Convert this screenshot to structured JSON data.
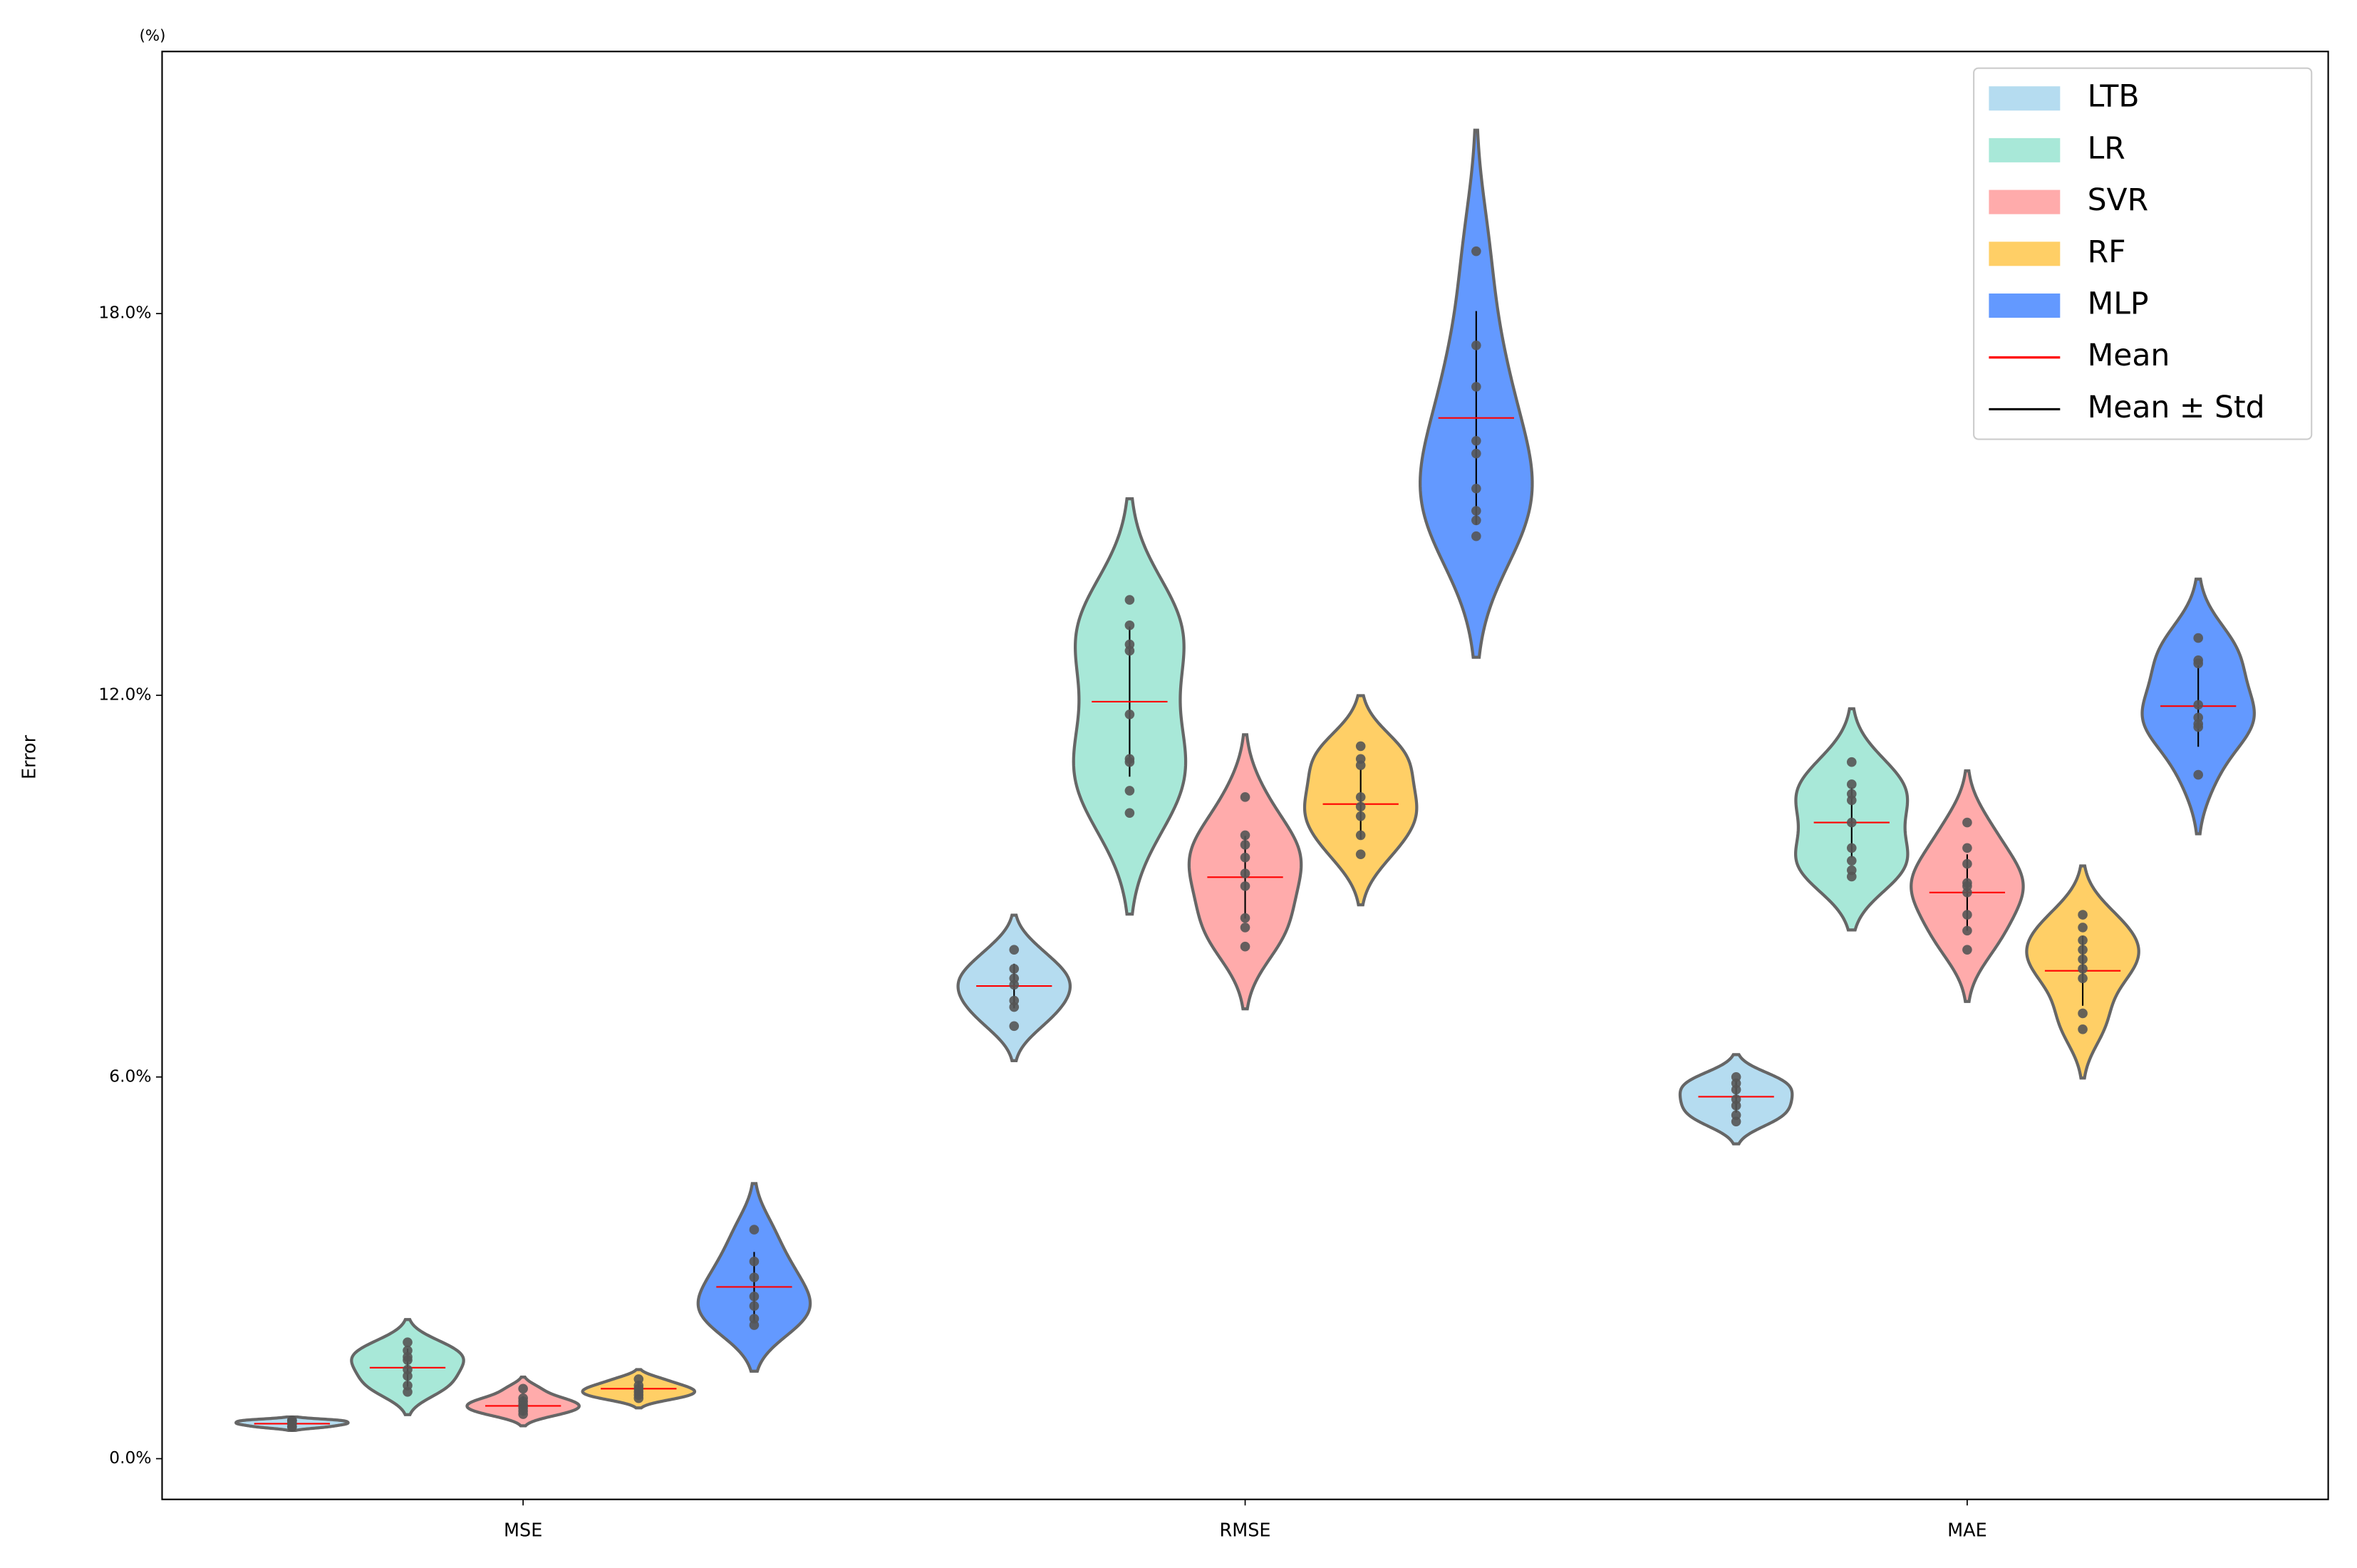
{
  "chart_data": {
    "type": "violin",
    "ylabel": "Error",
    "unit_note": "(%)",
    "categories": [
      "MSE",
      "RMSE",
      "MAE"
    ],
    "ylim": [
      -0.64,
      22.12
    ],
    "yticks": [
      {
        "value": 0,
        "label": "0.0%"
      },
      {
        "value": 6,
        "label": "6.0%"
      },
      {
        "value": 12,
        "label": "12.0%"
      },
      {
        "value": 18,
        "label": "18.0%"
      }
    ],
    "legend": "upper right",
    "series": [
      {
        "name": "LTB",
        "color": "#b5dcf0",
        "points": [
          [
            0.5,
            0.55,
            0.55,
            0.6,
            0.6,
            0.5,
            0.55,
            0.6
          ],
          [
            8.0,
            7.7,
            7.55,
            7.45,
            7.2,
            7.1,
            6.8
          ],
          [
            6.0,
            5.9,
            5.8,
            5.65,
            5.55,
            5.4,
            5.3
          ]
        ],
        "mean": [
          0.55,
          7.43,
          5.69
        ],
        "std": [
          0.04,
          0.35,
          0.25
        ]
      },
      {
        "name": "LR",
        "color": "#a8e8d8",
        "points": [
          [
            1.83,
            1.7,
            1.55,
            1.4,
            1.3,
            1.15,
            1.05,
            1.6
          ],
          [
            13.5,
            13.1,
            12.8,
            12.7,
            11.7,
            11.0,
            10.95,
            10.5,
            10.15
          ],
          [
            10.95,
            10.6,
            10.45,
            10.35,
            10.0,
            9.6,
            9.4,
            9.25,
            9.15
          ]
        ],
        "mean": [
          1.43,
          11.9,
          10.0
        ],
        "std": [
          0.3,
          1.18,
          0.55
        ]
      },
      {
        "name": "SVR",
        "color": "#ffabab",
        "points": [
          [
            1.1,
            0.95,
            0.85,
            0.75,
            0.7,
            0.8,
            0.9
          ],
          [
            10.4,
            9.8,
            9.65,
            9.45,
            9.2,
            9.0,
            8.5,
            8.35,
            8.05
          ],
          [
            10.0,
            9.6,
            9.35,
            9.05,
            9.0,
            8.9,
            8.55,
            8.3,
            8.0
          ]
        ],
        "mean": [
          0.83,
          9.14,
          8.9
        ],
        "std": [
          0.15,
          0.65,
          0.6
        ]
      },
      {
        "name": "RF",
        "color": "#ffcf66",
        "points": [
          [
            1.25,
            1.15,
            1.05,
            1.0,
            0.95,
            1.1
          ],
          [
            11.2,
            11.0,
            10.9,
            10.4,
            10.25,
            10.1,
            9.8,
            9.5
          ],
          [
            8.55,
            8.35,
            8.15,
            8.0,
            7.85,
            7.7,
            7.55,
            7.0,
            6.75
          ]
        ],
        "mean": [
          1.1,
          10.29,
          7.67
        ],
        "std": [
          0.12,
          0.55,
          0.55
        ]
      },
      {
        "name": "MLP",
        "color": "#6399ff",
        "points": [
          [
            3.6,
            3.1,
            2.85,
            2.55,
            2.4,
            2.2,
            2.1
          ],
          [
            18.98,
            17.5,
            16.85,
            16.0,
            15.8,
            15.25,
            14.9,
            14.75,
            14.5
          ],
          [
            12.9,
            12.55,
            12.5,
            11.85,
            11.65,
            11.55,
            11.5,
            10.75
          ]
        ],
        "mean": [
          2.7,
          16.36,
          11.83
        ],
        "std": [
          0.55,
          1.68,
          0.64
        ]
      }
    ],
    "mean_line": {
      "label": "Mean",
      "color": "#ff0000"
    },
    "std_line": {
      "label": "Mean ± Std",
      "color": "#000000"
    }
  }
}
